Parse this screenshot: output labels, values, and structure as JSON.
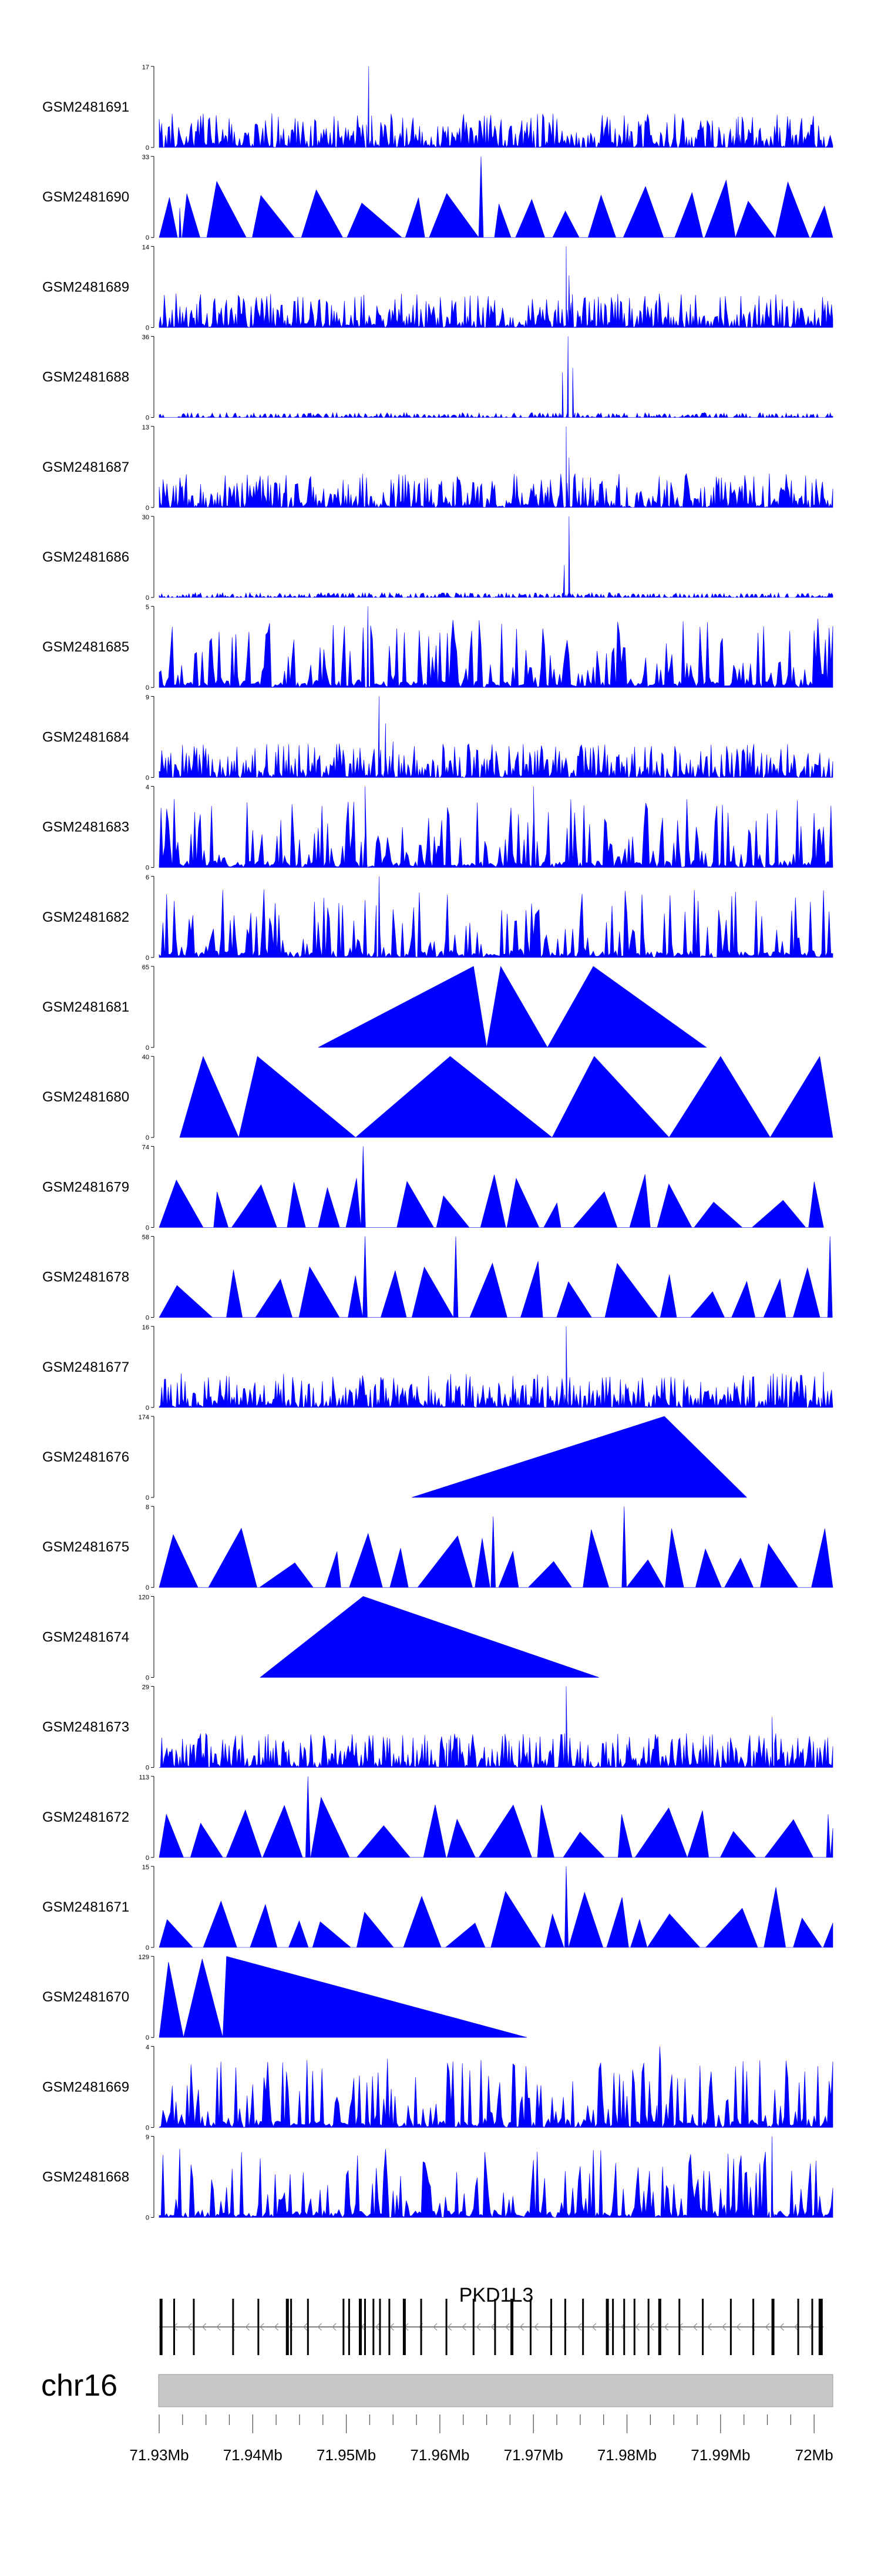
{
  "chart_data": {
    "type": "area",
    "title": "",
    "xlabel": "",
    "ylabel": "",
    "track_color": "#0000ff",
    "xlim_mb": [
      71.93,
      72.002
    ],
    "tracks": [
      {
        "name": "GSM2481691",
        "ymax": "17",
        "ymax_value": 17,
        "pattern": "noise",
        "seed": 11,
        "peaks": [
          [
            71.9524,
            17
          ],
          [
            71.9917,
            6
          ],
          [
            71.9801,
            5
          ]
        ]
      },
      {
        "name": "GSM2481690",
        "ymax": "33",
        "ymax_value": 33,
        "pattern": "tri",
        "seed": 12,
        "peaks": [
          [
            71.9644,
            33
          ],
          [
            71.9322,
            12
          ]
        ]
      },
      {
        "name": "GSM2481689",
        "ymax": "14",
        "ymax_value": 14,
        "pattern": "noise",
        "seed": 13,
        "peaks": [
          [
            71.9735,
            14
          ],
          [
            71.9738,
            9
          ]
        ]
      },
      {
        "name": "GSM2481688",
        "ymax": "36",
        "ymax_value": 36,
        "pattern": "sparse",
        "seed": 14,
        "peaks": [
          [
            71.9737,
            36
          ],
          [
            71.9731,
            20
          ],
          [
            71.9742,
            22
          ]
        ]
      },
      {
        "name": "GSM2481687",
        "ymax": "13",
        "ymax_value": 13,
        "pattern": "noise",
        "seed": 15,
        "peaks": [
          [
            71.9735,
            13
          ],
          [
            71.9738,
            8
          ]
        ]
      },
      {
        "name": "GSM2481686",
        "ymax": "30",
        "ymax_value": 30,
        "pattern": "sparse",
        "seed": 16,
        "peaks": [
          [
            71.9738,
            30
          ],
          [
            71.9733,
            12
          ]
        ]
      },
      {
        "name": "GSM2481685",
        "ymax": "5",
        "ymax_value": 5,
        "pattern": "spiky",
        "seed": 17,
        "peaks": [
          [
            71.9523,
            5
          ]
        ]
      },
      {
        "name": "GSM2481684",
        "ymax": "9",
        "ymax_value": 9,
        "pattern": "noise",
        "seed": 18,
        "peaks": [
          [
            71.9535,
            9
          ],
          [
            71.9542,
            6
          ],
          [
            71.955,
            4
          ]
        ]
      },
      {
        "name": "GSM2481683",
        "ymax": "4",
        "ymax_value": 4,
        "pattern": "spiky",
        "seed": 19,
        "peaks": [
          [
            71.952,
            4
          ],
          [
            71.97,
            4
          ]
        ]
      },
      {
        "name": "GSM2481682",
        "ymax": "6",
        "ymax_value": 6,
        "pattern": "spiky",
        "seed": 20,
        "peaks": [
          [
            71.9535,
            6
          ]
        ]
      },
      {
        "name": "GSM2481681",
        "ymax": "65",
        "ymax_value": 65,
        "pattern": "tri",
        "seed": 21,
        "triangles": [
          [
            71.947,
            71.9636,
            71.965,
            65
          ],
          [
            71.965,
            71.9665,
            71.9715,
            65
          ],
          [
            71.9715,
            71.9764,
            71.9885,
            65
          ]
        ]
      },
      {
        "name": "GSM2481680",
        "ymax": "40",
        "ymax_value": 40,
        "pattern": "tri",
        "seed": 22,
        "triangles": [
          [
            71.9322,
            71.9347,
            71.9385,
            40
          ],
          [
            71.9385,
            71.9405,
            71.951,
            40
          ],
          [
            71.951,
            71.9611,
            71.972,
            40
          ],
          [
            71.972,
            71.9765,
            71.9845,
            40
          ],
          [
            71.9845,
            71.99,
            71.9953,
            40
          ],
          [
            71.9953,
            72.0006,
            72.0025,
            40
          ]
        ]
      },
      {
        "name": "GSM2481679",
        "ymax": "74",
        "ymax_value": 74,
        "pattern": "tri",
        "seed": 23,
        "peaks": [
          [
            71.9518,
            74
          ]
        ]
      },
      {
        "name": "GSM2481678",
        "ymax": "58",
        "ymax_value": 58,
        "pattern": "tri",
        "seed": 24,
        "peaks": [
          [
            71.952,
            58
          ],
          [
            72.0017,
            58
          ],
          [
            71.9617,
            58
          ]
        ]
      },
      {
        "name": "GSM2481677",
        "ymax": "16",
        "ymax_value": 16,
        "pattern": "noise",
        "seed": 25,
        "peaks": [
          [
            71.9735,
            16
          ],
          [
            72.001,
            7
          ]
        ]
      },
      {
        "name": "GSM2481676",
        "ymax": "174",
        "ymax_value": 174,
        "pattern": "tri",
        "seed": 26,
        "triangles": [
          [
            71.957,
            71.984,
            71.9928,
            174
          ]
        ]
      },
      {
        "name": "GSM2481675",
        "ymax": "8",
        "ymax_value": 8,
        "pattern": "tri",
        "seed": 27,
        "peaks": [
          [
            71.9657,
            7
          ],
          [
            71.9797,
            8
          ]
        ]
      },
      {
        "name": "GSM2481674",
        "ymax": "120",
        "ymax_value": 120,
        "pattern": "tri",
        "seed": 28,
        "triangles": [
          [
            71.9408,
            71.9518,
            71.977,
            120
          ]
        ]
      },
      {
        "name": "GSM2481673",
        "ymax": "29",
        "ymax_value": 29,
        "pattern": "noise",
        "seed": 29,
        "peaks": [
          [
            71.9735,
            29
          ],
          [
            71.961,
            10
          ],
          [
            71.9955,
            18
          ]
        ]
      },
      {
        "name": "GSM2481672",
        "ymax": "113",
        "ymax_value": 113,
        "pattern": "tri",
        "seed": 30,
        "peaks": [
          [
            71.9459,
            113
          ],
          [
            72.0015,
            60
          ]
        ]
      },
      {
        "name": "GSM2481671",
        "ymax": "15",
        "ymax_value": 15,
        "pattern": "tri",
        "seed": 31,
        "peaks": [
          [
            71.9735,
            15
          ]
        ]
      },
      {
        "name": "GSM2481670",
        "ymax": "129",
        "ymax_value": 129,
        "pattern": "tri",
        "seed": 32,
        "triangles": [
          [
            71.93,
            71.931,
            71.9326,
            120
          ],
          [
            71.9326,
            71.9346,
            71.9368,
            125
          ],
          [
            71.9368,
            71.9372,
            71.9693,
            129
          ]
        ]
      },
      {
        "name": "GSM2481669",
        "ymax": "4",
        "ymax_value": 4,
        "pattern": "spiky",
        "seed": 33,
        "peaks": [
          [
            71.9835,
            4
          ]
        ]
      },
      {
        "name": "GSM2481668",
        "ymax": "9",
        "ymax_value": 9,
        "pattern": "spiky",
        "seed": 34,
        "peaks": [
          [
            71.9955,
            9
          ]
        ]
      }
    ],
    "track_ymin_label": "0",
    "gene": {
      "name": "PKD1L3",
      "strand": "-",
      "start_mb": 71.93,
      "end_mb": 72.001,
      "exons_mb": [
        71.9302,
        71.9316,
        71.9337,
        71.9379,
        71.9406,
        71.9437,
        71.9441,
        71.9459,
        71.9497,
        71.9503,
        71.9515,
        71.952,
        71.9529,
        71.9536,
        71.9546,
        71.9562,
        71.958,
        71.9607,
        71.9636,
        71.9659,
        71.9677,
        71.9697,
        71.9719,
        71.9734,
        71.9753,
        71.9779,
        71.9785,
        71.9797,
        71.9808,
        71.9823,
        71.9835,
        71.9856,
        71.9881,
        71.9911,
        71.9935,
        71.9956,
        71.9983,
        71.9998,
        72.0007
      ]
    },
    "chromosome": {
      "name": "chr16",
      "tick_labels": [
        "71.93Mb",
        "71.94Mb",
        "71.95Mb",
        "71.96Mb",
        "71.97Mb",
        "71.98Mb",
        "71.99Mb",
        "72Mb"
      ],
      "tick_values": [
        71.93,
        71.94,
        71.95,
        71.96,
        71.97,
        71.98,
        71.99,
        72.0
      ],
      "minor_ticks_per_major": 4
    }
  }
}
